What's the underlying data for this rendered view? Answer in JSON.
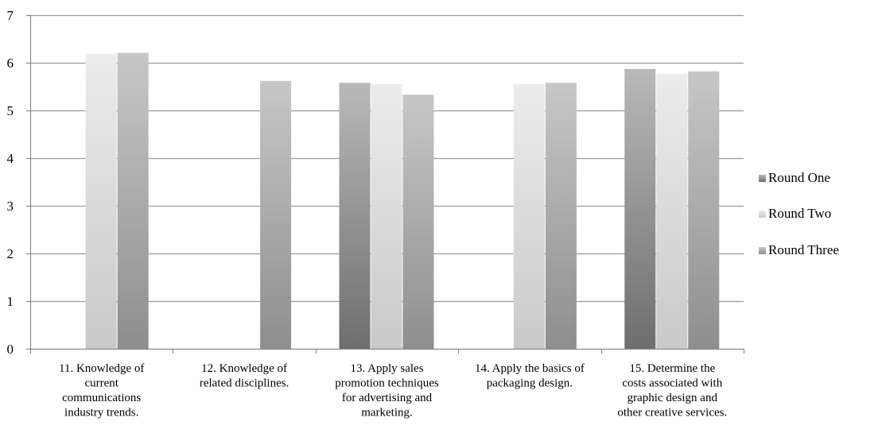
{
  "chart_data": {
    "type": "bar",
    "title": "",
    "xlabel": "",
    "ylabel": "",
    "ylim": [
      0,
      7
    ],
    "yticks": [
      0,
      1,
      2,
      3,
      4,
      5,
      6,
      7
    ],
    "grid": true,
    "legend_position": "right",
    "categories": [
      [
        "11.  Knowledge of",
        "current",
        "communications",
        "industry trends."
      ],
      [
        "12.  Knowledge of",
        "related disciplines."
      ],
      [
        "13.  Apply sales",
        "promotion techniques",
        "for advertising and",
        "marketing."
      ],
      [
        "14.  Apply the basics of",
        "packaging design."
      ],
      [
        "15.  Determine the",
        "costs associated with",
        "graphic design and",
        "other creative services."
      ]
    ],
    "series": [
      {
        "name": "Round One",
        "values": [
          null,
          null,
          5.58,
          null,
          5.87
        ]
      },
      {
        "name": "Round Two",
        "values": [
          6.19,
          null,
          5.55,
          5.55,
          5.77
        ]
      },
      {
        "name": "Round Three",
        "values": [
          6.21,
          5.62,
          5.33,
          5.58,
          5.82
        ]
      }
    ],
    "colors": {
      "round_one": [
        "#6e6e6e",
        "#b9b9b9"
      ],
      "round_two": [
        "#c9c9c9",
        "#ececec"
      ],
      "round_three": [
        "#8e8e8e",
        "#c7c7c7"
      ],
      "grid": "#9a9a9a",
      "axis": "#8a8a8a"
    }
  }
}
